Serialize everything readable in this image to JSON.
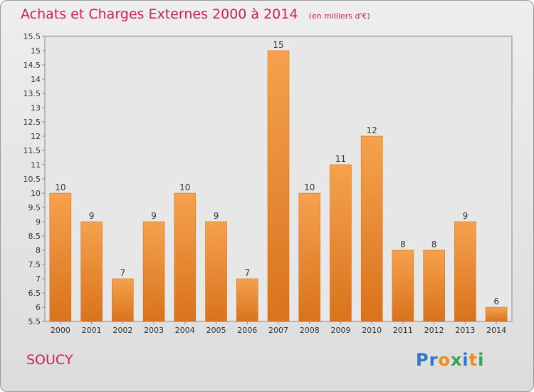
{
  "header": {
    "title": "Achats et Charges Externes 2000 à 2014",
    "unit": "(en milliers d'€)"
  },
  "footer": {
    "town": "SOUCY",
    "logo": "Proxiti"
  },
  "colors": {
    "accent": "#d01f57",
    "bar_light": "#f6a14d",
    "bar_dark": "#d9731c",
    "logo_letters": [
      "#2e76c7",
      "#2e76c7",
      "#f08a1c",
      "#2fa84f",
      "#2e76c7",
      "#f08a1c",
      "#2fa84f"
    ]
  },
  "chart_data": {
    "type": "bar",
    "title": "Achats et Charges Externes 2000 à 2014",
    "categories": [
      "2000",
      "2001",
      "2002",
      "2003",
      "2004",
      "2005",
      "2006",
      "2007",
      "2008",
      "2009",
      "2010",
      "2011",
      "2012",
      "2013",
      "2014"
    ],
    "values": [
      10,
      9,
      7,
      9,
      10,
      9,
      7,
      15,
      10,
      11,
      12,
      8,
      8,
      9,
      6
    ],
    "data_labels": [
      "10",
      "9",
      "7",
      "9",
      "10",
      "9",
      "7",
      "15",
      "10",
      "11",
      "12",
      "8",
      "8",
      "9",
      "6"
    ],
    "ylim": [
      5.5,
      15.5
    ],
    "yticks": [
      "5.5",
      "6",
      "6.5",
      "7",
      "7.5",
      "8",
      "8.5",
      "9",
      "9.5",
      "10",
      "10.5",
      "11",
      "11.5",
      "12",
      "12.5",
      "13",
      "13.5",
      "14",
      "14.5",
      "15",
      "15.5"
    ],
    "grid": false,
    "xlabel": "",
    "ylabel": ""
  }
}
